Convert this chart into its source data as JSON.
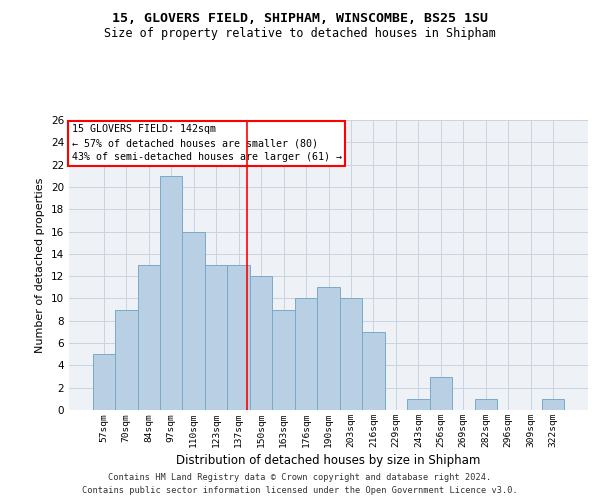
{
  "title1": "15, GLOVERS FIELD, SHIPHAM, WINSCOMBE, BS25 1SU",
  "title2": "Size of property relative to detached houses in Shipham",
  "xlabel": "Distribution of detached houses by size in Shipham",
  "ylabel": "Number of detached properties",
  "categories": [
    "57sqm",
    "70sqm",
    "84sqm",
    "97sqm",
    "110sqm",
    "123sqm",
    "137sqm",
    "150sqm",
    "163sqm",
    "176sqm",
    "190sqm",
    "203sqm",
    "216sqm",
    "229sqm",
    "243sqm",
    "256sqm",
    "269sqm",
    "282sqm",
    "296sqm",
    "309sqm",
    "322sqm"
  ],
  "values": [
    5,
    9,
    13,
    21,
    16,
    13,
    13,
    12,
    9,
    10,
    11,
    10,
    7,
    0,
    1,
    3,
    0,
    1,
    0,
    0,
    1
  ],
  "bar_color": "#b8cfe4",
  "bar_edge_color": "#7aaac8",
  "annotation_title": "15 GLOVERS FIELD: 142sqm",
  "annotation_line1": "← 57% of detached houses are smaller (80)",
  "annotation_line2": "43% of semi-detached houses are larger (61) →",
  "ylim": [
    0,
    26
  ],
  "yticks": [
    0,
    2,
    4,
    6,
    8,
    10,
    12,
    14,
    16,
    18,
    20,
    22,
    24,
    26
  ],
  "footer1": "Contains HM Land Registry data © Crown copyright and database right 2024.",
  "footer2": "Contains public sector information licensed under the Open Government Licence v3.0.",
  "bg_color": "#eef2f7",
  "grid_color": "#c8d4e0"
}
